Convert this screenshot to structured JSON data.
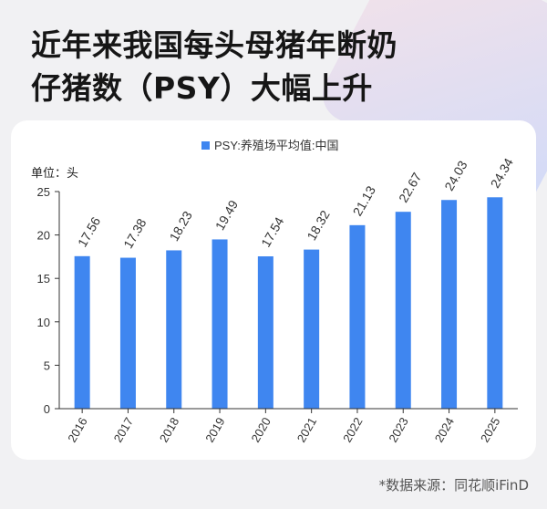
{
  "headline": [
    "近年来我国每头母猪年断奶",
    "仔猪数（PSY）大幅上升"
  ],
  "source": "*数据来源：同花顺iFinD",
  "chart_data": {
    "type": "bar",
    "legend": "PSY:养殖场平均值:中国",
    "unit_label": "单位：头",
    "categories": [
      "2016",
      "2017",
      "2018",
      "2019",
      "2020",
      "2021",
      "2022",
      "2023",
      "2024",
      "2025"
    ],
    "series": [
      {
        "name": "PSY:养殖场平均值:中国",
        "values": [
          17.56,
          17.38,
          18.23,
          19.49,
          17.54,
          18.32,
          21.13,
          22.67,
          24.03,
          24.34
        ],
        "labels": [
          "17.56",
          "17.38",
          "18.23",
          "19.49",
          "17.54",
          "18.32",
          "21.13",
          "22.67",
          "24.03",
          "24.34"
        ]
      }
    ],
    "ylim": [
      0,
      25
    ],
    "yticks": [
      "0",
      "5",
      "10",
      "15",
      "20",
      "25"
    ],
    "color": "#3f86f0",
    "grid": false,
    "legend_position": "top"
  }
}
